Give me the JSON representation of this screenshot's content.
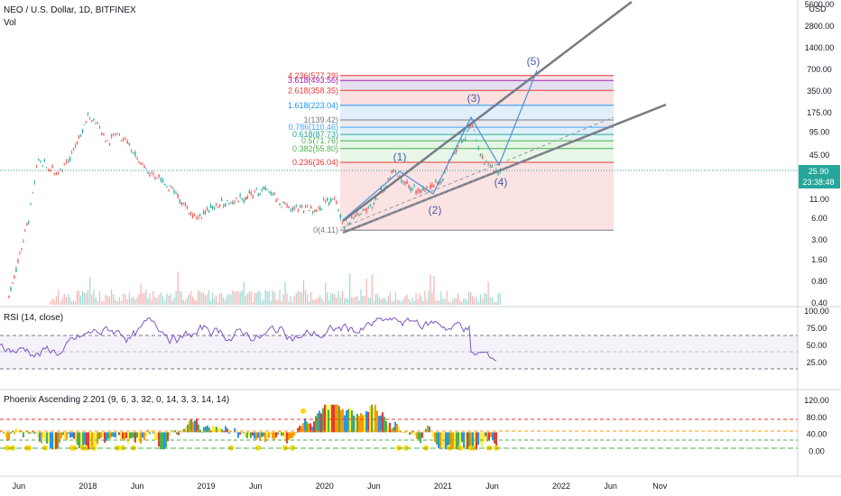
{
  "header": {
    "symbol": "NEO / U.S. Dollar, 1D, BITFINEX",
    "vol_label": "Vol"
  },
  "price_axis": {
    "unit": "USD",
    "ticks": [
      "5600.00",
      "2800.00",
      "1400.00",
      "700.00",
      "350.00",
      "175.00",
      "95.00",
      "45.00",
      "11.00",
      "6.00",
      "3.00",
      "1.60",
      "0.80",
      "0.40"
    ],
    "last_price": "25.90",
    "countdown": "23:38:48"
  },
  "rsi": {
    "title": "RSI (14, close)",
    "ticks": [
      "100.00",
      "75.00",
      "50.00",
      "25.00"
    ],
    "upper": 70,
    "lower": 30
  },
  "phoenix": {
    "title": "Phoenix Ascending 2.201 (9, 6, 3, 32, 0, 14, 3, 3, 14, 14)",
    "ticks": [
      "120.00",
      "80.00",
      "40.00",
      "0.00"
    ]
  },
  "time_axis": {
    "labels": [
      "Jun",
      "2018",
      "Jun",
      "2019",
      "Jun",
      "2020",
      "Jun",
      "2021",
      "Jun",
      "2022",
      "Jun",
      "Nov"
    ]
  },
  "fib_levels": [
    {
      "label": "4.236(577.29)",
      "value": 577.29,
      "color": "#e53935"
    },
    {
      "label": "3.618(493.56)",
      "value": 493.56,
      "color": "#9c27b0"
    },
    {
      "label": "2.618(358.35)",
      "value": 358.35,
      "color": "#e53935"
    },
    {
      "label": "1.618(223.04)",
      "value": 223.04,
      "color": "#2196f3"
    },
    {
      "label": "1(139.42)",
      "value": 139.42,
      "color": "#787b86"
    },
    {
      "label": "0.786(110.46)",
      "value": 110.46,
      "color": "#42a5f5"
    },
    {
      "label": "0.618(87.73)",
      "value": 87.73,
      "color": "#26a69a"
    },
    {
      "label": "0.5(71.76)",
      "value": 71.76,
      "color": "#4caf50"
    },
    {
      "label": "0.382(55.80)",
      "value": 55.8,
      "color": "#4caf50"
    },
    {
      "label": "0.236(36.04)",
      "value": 36.04,
      "color": "#e53935"
    },
    {
      "label": "0(4.11)",
      "value": 4.11,
      "color": "#787b86"
    }
  ],
  "waves": [
    "(1)",
    "(2)",
    "(3)",
    "(4)",
    "(5)"
  ],
  "colors": {
    "up": "#26a69a",
    "down": "#ef5350",
    "rsi_line": "#7e57c2",
    "accent": "#2962ff",
    "wave": "#4a90d9"
  },
  "chart_data": {
    "type": "line",
    "title": "NEO / U.S. Dollar, 1D, BITFINEX",
    "scale": "log",
    "x_range": [
      "2017-05",
      "2022-12"
    ],
    "ylim": [
      0.4,
      5600
    ],
    "series": [
      {
        "name": "NEO / U.S. Dollar",
        "points": [
          [
            "2017-05",
            0.5
          ],
          [
            "2017-07",
            6
          ],
          [
            "2017-08",
            40
          ],
          [
            "2017-09",
            30
          ],
          [
            "2017-10",
            28
          ],
          [
            "2017-11",
            35
          ],
          [
            "2018-01",
            170
          ],
          [
            "2018-02",
            120
          ],
          [
            "2018-03",
            70
          ],
          [
            "2018-04",
            90
          ],
          [
            "2018-05",
            70
          ],
          [
            "2018-06",
            40
          ],
          [
            "2018-08",
            22
          ],
          [
            "2018-09",
            18
          ],
          [
            "2018-12",
            6
          ],
          [
            "2019-02",
            9
          ],
          [
            "2019-05",
            12
          ],
          [
            "2019-07",
            15
          ],
          [
            "2019-09",
            9
          ],
          [
            "2019-12",
            8
          ],
          [
            "2020-02",
            12
          ],
          [
            "2020-03",
            5
          ],
          [
            "2020-06",
            10
          ],
          [
            "2020-08",
            26
          ],
          [
            "2020-09",
            18
          ],
          [
            "2020-11",
            14
          ],
          [
            "2021-01",
            22
          ],
          [
            "2021-02",
            45
          ],
          [
            "2021-04",
            120
          ],
          [
            "2021-05",
            40
          ],
          [
            "2021-06",
            30
          ],
          [
            "2021-07",
            25.9
          ]
        ]
      }
    ],
    "rsi": {
      "name": "RSI (14, close)",
      "ylim": [
        0,
        100
      ],
      "last": 28
    }
  }
}
